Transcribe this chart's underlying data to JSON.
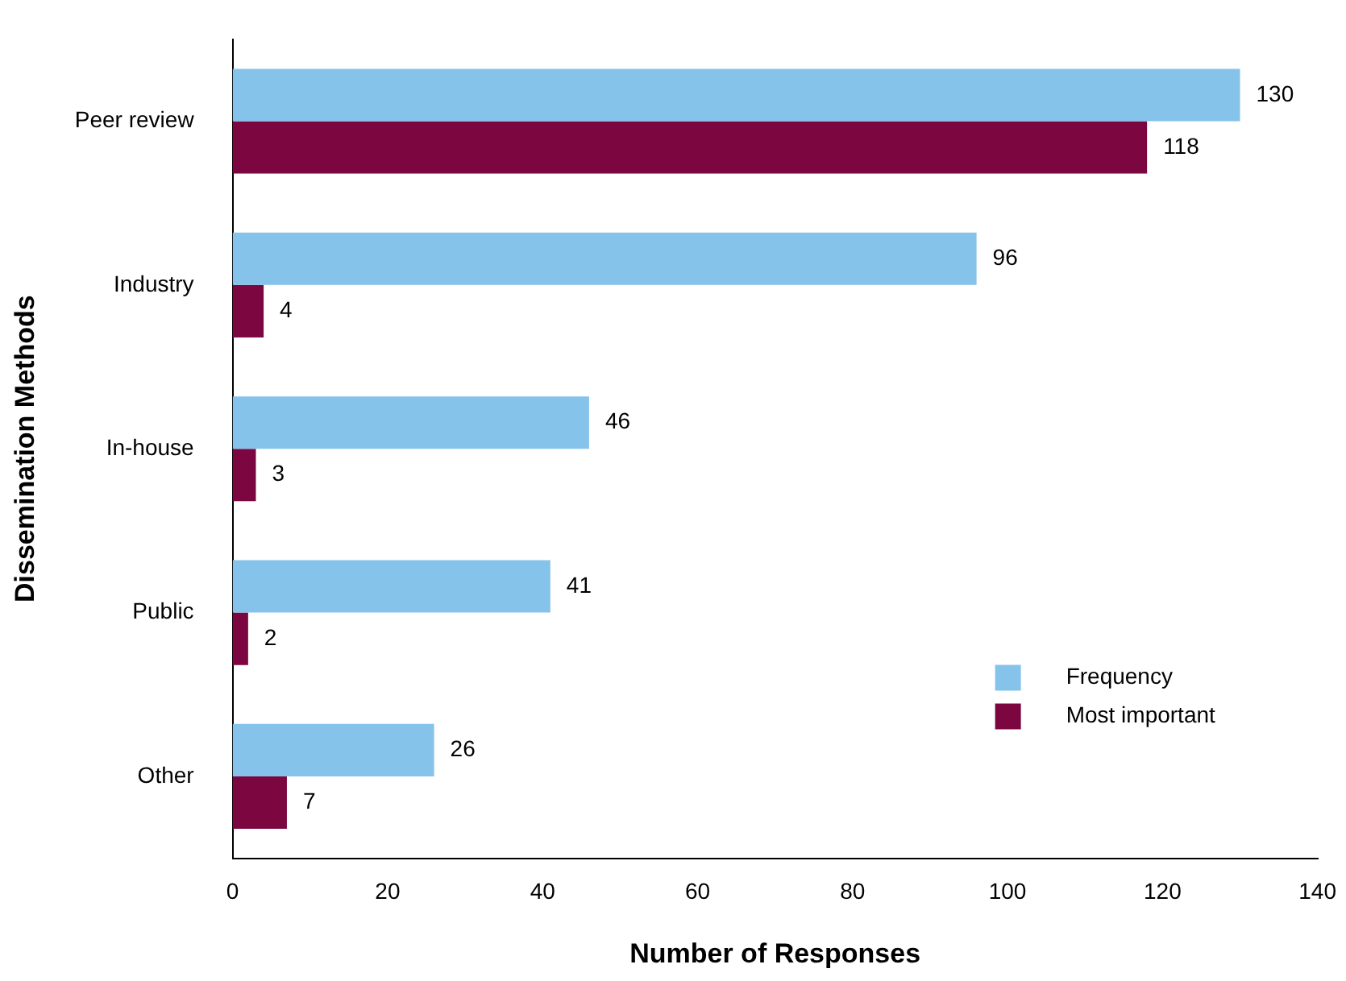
{
  "chart_data": {
    "type": "bar",
    "orientation": "horizontal",
    "xlabel": "Number of Responses",
    "ylabel": "Dissemination Methods",
    "categories": [
      "Peer review",
      "Industry",
      "In-house",
      "Public",
      "Other"
    ],
    "series": [
      {
        "name": "Frequency",
        "color": "#85c3ea",
        "values": [
          130,
          96,
          46,
          41,
          26
        ]
      },
      {
        "name": "Most important",
        "color": "#7b0640",
        "values": [
          118,
          4,
          3,
          2,
          7
        ]
      }
    ],
    "xlim": [
      0,
      140
    ],
    "xticks": [
      0,
      20,
      40,
      60,
      80,
      100,
      120,
      140
    ],
    "grid": false,
    "legend": "bottom right",
    "data_labels": true
  }
}
